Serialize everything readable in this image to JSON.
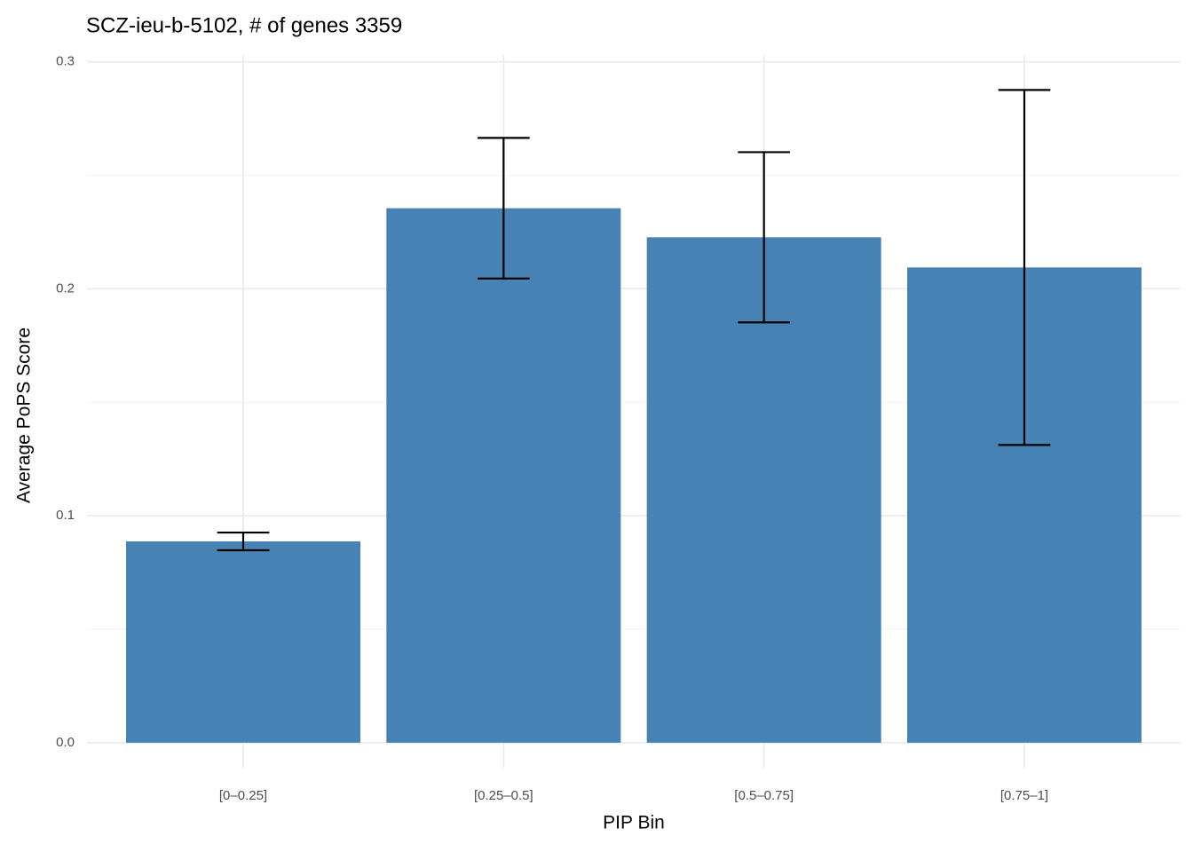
{
  "chart_data": {
    "type": "bar",
    "title": "SCZ-ieu-b-5102, # of genes 3359",
    "x_label": "PIP Bin",
    "y_label": "Average PoPS Score",
    "categories": [
      "[0–0.25]",
      "[0.25–0.5]",
      "[0.5–0.75]",
      "[0.75–1]"
    ],
    "values": [
      0.0887,
      0.2355,
      0.2227,
      0.2094
    ],
    "errors": [
      0.0039,
      0.031,
      0.0375,
      0.0782
    ],
    "color": "#4682b4",
    "ylim": [
      -0.011,
      0.303
    ],
    "yticks": [
      {
        "value": 0,
        "label": "0.0"
      },
      0.1,
      0.2,
      0.3
    ],
    "minor_yticks": [
      0.05,
      0.15,
      0.25
    ],
    "grid": true
  }
}
